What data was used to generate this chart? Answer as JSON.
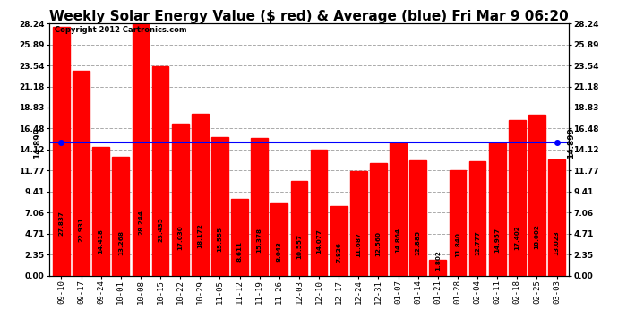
{
  "title": "Weekly Solar Energy Value ($ red) & Average (blue) Fri Mar 9 06:20",
  "categories": [
    "09-10",
    "09-17",
    "09-24",
    "10-01",
    "10-08",
    "10-15",
    "10-22",
    "10-29",
    "11-05",
    "11-12",
    "11-19",
    "11-26",
    "12-03",
    "12-10",
    "12-17",
    "12-24",
    "12-31",
    "01-07",
    "01-14",
    "01-21",
    "01-28",
    "02-04",
    "02-11",
    "02-18",
    "02-25",
    "03-03"
  ],
  "values": [
    27.837,
    22.931,
    14.418,
    13.268,
    28.244,
    23.435,
    17.03,
    18.172,
    15.555,
    8.611,
    15.378,
    8.043,
    10.557,
    14.077,
    7.826,
    11.687,
    12.56,
    14.864,
    12.885,
    1.802,
    11.84,
    12.777,
    14.957,
    17.402,
    18.002,
    13.023
  ],
  "average": 14.899,
  "bar_color": "#ff0000",
  "avg_line_color": "#0000ff",
  "background_color": "#ffffff",
  "plot_bg_color": "#ffffff",
  "grid_color": "#aaaaaa",
  "title_fontsize": 11,
  "copyright_text": "Copyright 2012 Cartronics.com",
  "yticks": [
    0.0,
    2.35,
    4.71,
    7.06,
    9.41,
    11.77,
    14.12,
    16.48,
    18.83,
    21.18,
    23.54,
    25.89,
    28.24
  ],
  "ylim": [
    0,
    28.24
  ],
  "avg_label": "14.899"
}
